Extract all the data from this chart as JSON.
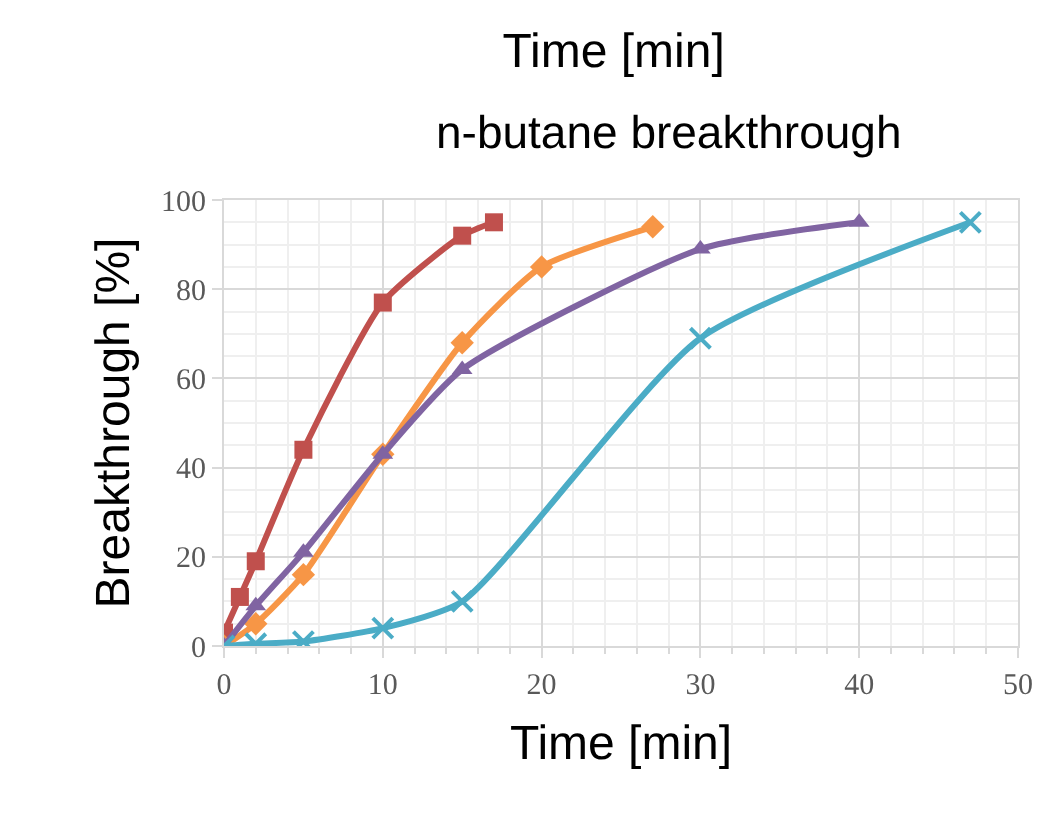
{
  "chart_data": {
    "type": "line",
    "title": "Time [min]",
    "subtitle": "n-butane breakthrough",
    "xlabel": "Time [min]",
    "ylabel": "Breakthrough [%]",
    "xlim": [
      0,
      50
    ],
    "xticks": [
      0,
      10,
      20,
      30,
      40,
      50
    ],
    "ylim": [
      0,
      100
    ],
    "yticks": [
      0,
      20,
      40,
      60,
      80,
      100
    ],
    "grid": true,
    "line_style": "solid",
    "series": [
      {
        "color": "#c0504d",
        "marker": "square",
        "x": [
          0,
          1,
          2,
          5,
          10,
          15,
          17
        ],
        "values": [
          3,
          11,
          19,
          44,
          77,
          92,
          95
        ]
      },
      {
        "color": "#f79646",
        "marker": "diamond",
        "x": [
          0,
          2,
          5,
          10,
          15,
          20,
          27
        ],
        "values": [
          0,
          5,
          16,
          43,
          68,
          85,
          94
        ]
      },
      {
        "color": "#8064a2",
        "marker": "triangle",
        "x": [
          0,
          2,
          5,
          10,
          15,
          30,
          40
        ],
        "values": [
          0,
          9,
          21,
          43,
          62,
          89,
          95
        ]
      },
      {
        "color": "#4bacc6",
        "marker": "cross",
        "x": [
          0,
          2,
          5,
          10,
          15,
          30,
          47
        ],
        "values": [
          0,
          0.5,
          1,
          4,
          10,
          69,
          95
        ]
      }
    ]
  }
}
